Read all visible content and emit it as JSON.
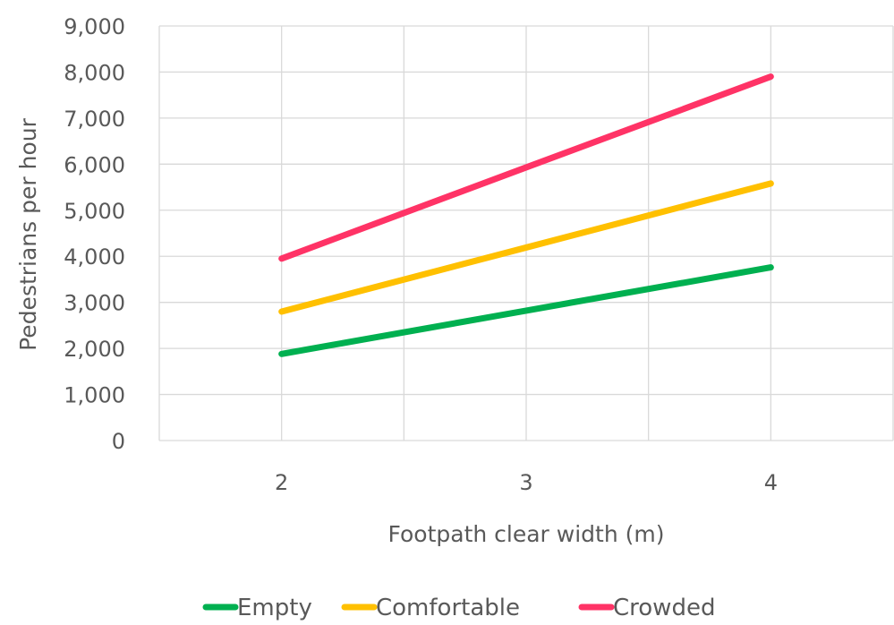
{
  "chart_data": {
    "type": "line",
    "x": [
      2,
      3,
      4
    ],
    "xlim": [
      1.5,
      4.5
    ],
    "ylim": [
      0,
      9000
    ],
    "yticks": [
      0,
      1000,
      2000,
      3000,
      4000,
      5000,
      6000,
      7000,
      8000,
      9000
    ],
    "ytick_labels": [
      "0",
      "1,000",
      "2,000",
      "3,000",
      "4,000",
      "5,000",
      "6,000",
      "7,000",
      "8,000",
      "9,000"
    ],
    "xticks": [
      2,
      3,
      4
    ],
    "xtick_labels": [
      "2",
      "3",
      "4"
    ],
    "xlabel": "Footpath clear width (m)",
    "ylabel": "Pedestrians per hour",
    "grid": true,
    "legend_position": "bottom",
    "series": [
      {
        "name": "Empty",
        "color": "#00b050",
        "values": [
          1880,
          2820,
          3760
        ]
      },
      {
        "name": "Comfortable",
        "color": "#ffc000",
        "values": [
          2800,
          4190,
          5580
        ]
      },
      {
        "name": "Crowded",
        "color": "#ff3366",
        "values": [
          3950,
          5930,
          7900
        ]
      }
    ]
  }
}
